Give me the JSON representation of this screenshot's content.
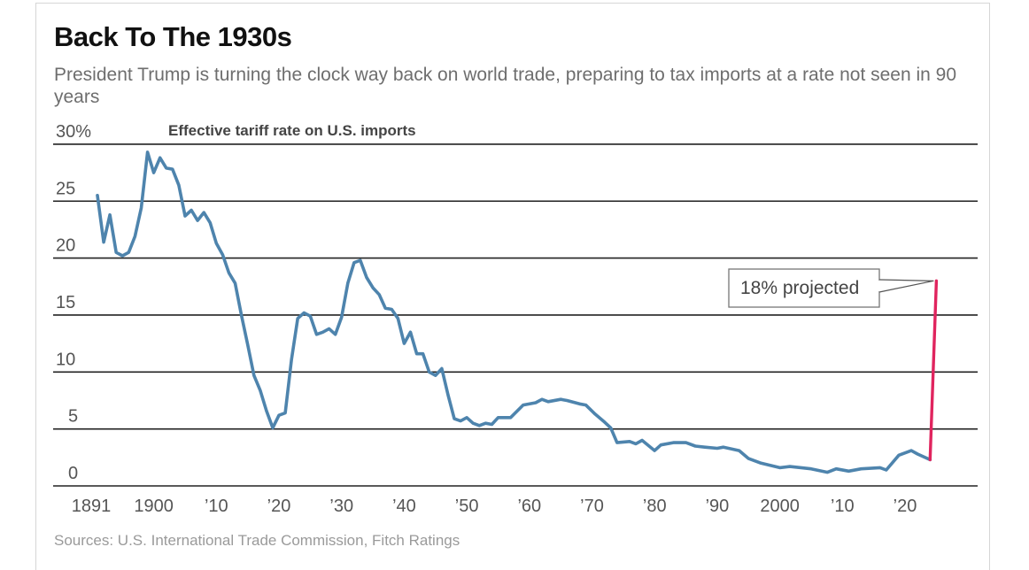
{
  "title": "Back To The 1930s",
  "subtitle": "President Trump is turning the clock way back on world trade, preparing to tax imports at a rate not seen in 90 years",
  "source": "Sources: U.S. International Trade Commission, Fitch Ratings",
  "colors": {
    "line": "#4e84ad",
    "projection": "#e0245e",
    "grid": "#222222"
  },
  "chart_data": {
    "type": "line",
    "title": "Effective tariff rate on U.S. imports",
    "xlabel": "",
    "ylabel": "",
    "ylim": [
      0,
      30
    ],
    "xlim": [
      1891,
      2025
    ],
    "grid": true,
    "y_ticks": [
      {
        "v": 0,
        "label": "0"
      },
      {
        "v": 5,
        "label": "5"
      },
      {
        "v": 10,
        "label": "10"
      },
      {
        "v": 15,
        "label": "15"
      },
      {
        "v": 20,
        "label": "20"
      },
      {
        "v": 25,
        "label": "25"
      },
      {
        "v": 30,
        "label": "30%"
      }
    ],
    "x_ticks": [
      {
        "v": 1891,
        "label": "1891"
      },
      {
        "v": 1900,
        "label": "1900"
      },
      {
        "v": 1910,
        "label": "’10"
      },
      {
        "v": 1920,
        "label": "’20"
      },
      {
        "v": 1930,
        "label": "’30"
      },
      {
        "v": 1940,
        "label": "’40"
      },
      {
        "v": 1950,
        "label": "’50"
      },
      {
        "v": 1960,
        "label": "’60"
      },
      {
        "v": 1970,
        "label": "’70"
      },
      {
        "v": 1980,
        "label": "’80"
      },
      {
        "v": 1990,
        "label": "’90"
      },
      {
        "v": 2000,
        "label": "2000"
      },
      {
        "v": 2010,
        "label": "’10"
      },
      {
        "v": 2020,
        "label": "’20"
      }
    ],
    "series": [
      {
        "name": "Effective tariff rate",
        "points": [
          [
            1891,
            25.5
          ],
          [
            1892,
            21.4
          ],
          [
            1893,
            23.8
          ],
          [
            1894,
            20.5
          ],
          [
            1895,
            20.2
          ],
          [
            1896,
            20.5
          ],
          [
            1897,
            21.9
          ],
          [
            1898,
            24.4
          ],
          [
            1899,
            29.3
          ],
          [
            1900,
            27.5
          ],
          [
            1901,
            28.8
          ],
          [
            1902,
            27.9
          ],
          [
            1903,
            27.8
          ],
          [
            1904,
            26.4
          ],
          [
            1905,
            23.7
          ],
          [
            1906,
            24.2
          ],
          [
            1907,
            23.3
          ],
          [
            1908,
            24.0
          ],
          [
            1909,
            23.1
          ],
          [
            1910,
            21.3
          ],
          [
            1911,
            20.3
          ],
          [
            1912,
            18.7
          ],
          [
            1913,
            17.8
          ],
          [
            1914,
            15.0
          ],
          [
            1915,
            12.4
          ],
          [
            1916,
            9.7
          ],
          [
            1917,
            8.4
          ],
          [
            1918,
            6.6
          ],
          [
            1919,
            5.1
          ],
          [
            1920,
            6.2
          ],
          [
            1921,
            6.4
          ],
          [
            1922,
            11.1
          ],
          [
            1923,
            14.7
          ],
          [
            1924,
            15.2
          ],
          [
            1925,
            14.9
          ],
          [
            1926,
            13.3
          ],
          [
            1927,
            13.5
          ],
          [
            1928,
            13.8
          ],
          [
            1929,
            13.3
          ],
          [
            1930,
            14.8
          ],
          [
            1931,
            17.8
          ],
          [
            1932,
            19.6
          ],
          [
            1933,
            19.8
          ],
          [
            1934,
            18.3
          ],
          [
            1935,
            17.4
          ],
          [
            1936,
            16.8
          ],
          [
            1937,
            15.6
          ],
          [
            1938,
            15.5
          ],
          [
            1939,
            14.7
          ],
          [
            1940,
            12.5
          ],
          [
            1941,
            13.5
          ],
          [
            1942,
            11.6
          ],
          [
            1943,
            11.6
          ],
          [
            1944,
            10.0
          ],
          [
            1945,
            9.7
          ],
          [
            1946,
            10.3
          ],
          [
            1947,
            8.0
          ],
          [
            1948,
            5.9
          ],
          [
            1949,
            5.7
          ],
          [
            1950,
            6.0
          ],
          [
            1951,
            5.5
          ],
          [
            1952,
            5.3
          ],
          [
            1953,
            5.5
          ],
          [
            1954,
            5.4
          ],
          [
            1955,
            6.0
          ],
          [
            1957,
            6.0
          ],
          [
            1959,
            7.1
          ],
          [
            1961,
            7.3
          ],
          [
            1962,
            7.6
          ],
          [
            1963,
            7.4
          ],
          [
            1965,
            7.6
          ],
          [
            1966,
            7.5
          ],
          [
            1968,
            7.2
          ],
          [
            1969,
            7.1
          ],
          [
            1970.5,
            6.3
          ],
          [
            1972,
            5.6
          ],
          [
            1973,
            5.1
          ],
          [
            1974,
            3.8
          ],
          [
            1976,
            3.9
          ],
          [
            1977,
            3.7
          ],
          [
            1978,
            4.0
          ],
          [
            1980,
            3.1
          ],
          [
            1981,
            3.6
          ],
          [
            1983,
            3.8
          ],
          [
            1985,
            3.8
          ],
          [
            1986.5,
            3.5
          ],
          [
            1988,
            3.4
          ],
          [
            1990,
            3.3
          ],
          [
            1991,
            3.4
          ],
          [
            1993.5,
            3.1
          ],
          [
            1995,
            2.4
          ],
          [
            1997,
            2.0
          ],
          [
            2000,
            1.6
          ],
          [
            2001.6,
            1.7
          ],
          [
            2005,
            1.5
          ],
          [
            2007.6,
            1.2
          ],
          [
            2009,
            1.5
          ],
          [
            2011,
            1.3
          ],
          [
            2013,
            1.5
          ],
          [
            2016,
            1.6
          ],
          [
            2017,
            1.4
          ],
          [
            2019,
            2.7
          ],
          [
            2021,
            3.1
          ],
          [
            2022,
            2.8
          ],
          [
            2024,
            2.3
          ]
        ]
      },
      {
        "name": "Projected",
        "points": [
          [
            2024,
            2.3
          ],
          [
            2025,
            18.0
          ]
        ]
      }
    ],
    "annotations": [
      {
        "text": "18% projected",
        "x": 2025,
        "y": 18.0
      }
    ]
  }
}
